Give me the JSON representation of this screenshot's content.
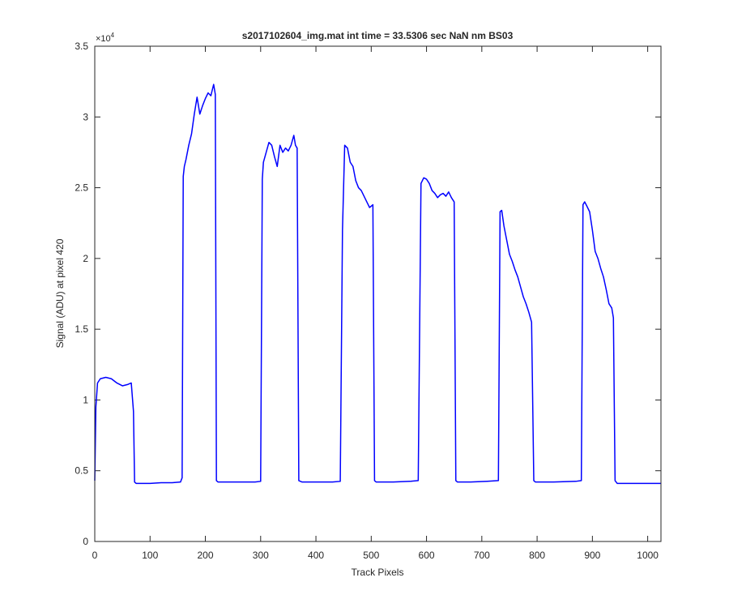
{
  "chart_data": {
    "type": "line",
    "title": "s2017102604_img.mat int time = 33.5306 sec  NaN nm BS03",
    "xlabel": "Track Pixels",
    "ylabel": "Signal (ADU) at pixel 420",
    "xlim": [
      0,
      1024
    ],
    "ylim": [
      0,
      35000
    ],
    "x_ticks": [
      0,
      100,
      200,
      300,
      400,
      500,
      600,
      700,
      800,
      900,
      1000
    ],
    "y_ticks": [
      0,
      5000,
      10000,
      15000,
      20000,
      25000,
      30000,
      35000
    ],
    "x_tick_labels": [
      "0",
      "100",
      "200",
      "300",
      "400",
      "500",
      "600",
      "700",
      "800",
      "900",
      "1000"
    ],
    "y_tick_labels": [
      "0",
      "0.5",
      "1",
      "1.5",
      "2",
      "2.5",
      "3",
      "3.5"
    ],
    "y_exponent_label": "×10",
    "y_exponent_power": "4",
    "grid": false,
    "line_color": "#0000ff",
    "series": [
      {
        "x": [
          0,
          2,
          5,
          10,
          20,
          30,
          40,
          50,
          60,
          66,
          68,
          70,
          72,
          75,
          80,
          100,
          120,
          140,
          155,
          158,
          160,
          162,
          165,
          170,
          175,
          180,
          185,
          190,
          195,
          200,
          205,
          210,
          215,
          218,
          220,
          223,
          230,
          260,
          290,
          300,
          303,
          305,
          310,
          315,
          320,
          325,
          330,
          335,
          340,
          345,
          350,
          355,
          360,
          363,
          366,
          369,
          375,
          400,
          430,
          444,
          448,
          452,
          457,
          462,
          467,
          472,
          477,
          482,
          487,
          492,
          497,
          503,
          506,
          509,
          515,
          540,
          570,
          585,
          590,
          595,
          600,
          605,
          610,
          615,
          620,
          625,
          630,
          635,
          640,
          645,
          650,
          653,
          656,
          660,
          680,
          710,
          730,
          733,
          736,
          740,
          745,
          750,
          755,
          760,
          765,
          770,
          775,
          780,
          785,
          790,
          794,
          797,
          800,
          830,
          870,
          880,
          883,
          886,
          890,
          895,
          900,
          905,
          910,
          915,
          920,
          925,
          930,
          935,
          938,
          941,
          945,
          980,
          1024
        ],
        "y": [
          4300,
          9500,
          11200,
          11500,
          11600,
          11500,
          11200,
          11000,
          11100,
          11200,
          10200,
          9200,
          4200,
          4100,
          4100,
          4100,
          4150,
          4150,
          4200,
          4500,
          25800,
          26500,
          27000,
          28000,
          28800,
          30200,
          31400,
          30200,
          30800,
          31300,
          31700,
          31500,
          32300,
          31600,
          4300,
          4200,
          4200,
          4200,
          4200,
          4250,
          25600,
          26800,
          27500,
          28200,
          28000,
          27200,
          26500,
          28000,
          27500,
          27800,
          27600,
          28000,
          28700,
          28000,
          27800,
          4300,
          4200,
          4200,
          4200,
          4250,
          22000,
          28000,
          27800,
          26800,
          26500,
          25500,
          25000,
          24800,
          24400,
          24000,
          23600,
          23800,
          4300,
          4200,
          4200,
          4200,
          4250,
          4300,
          25300,
          25700,
          25600,
          25300,
          24800,
          24600,
          24300,
          24500,
          24600,
          24400,
          24700,
          24300,
          24000,
          4300,
          4200,
          4200,
          4200,
          4250,
          4300,
          23300,
          23400,
          22300,
          21300,
          20300,
          19800,
          19200,
          18700,
          18000,
          17300,
          16800,
          16200,
          15500,
          4300,
          4200,
          4200,
          4200,
          4250,
          4300,
          23800,
          24000,
          23700,
          23300,
          22000,
          20500,
          20000,
          19300,
          18700,
          17800,
          16800,
          16500,
          15800,
          4300,
          4100,
          4100,
          4100
        ]
      }
    ]
  }
}
